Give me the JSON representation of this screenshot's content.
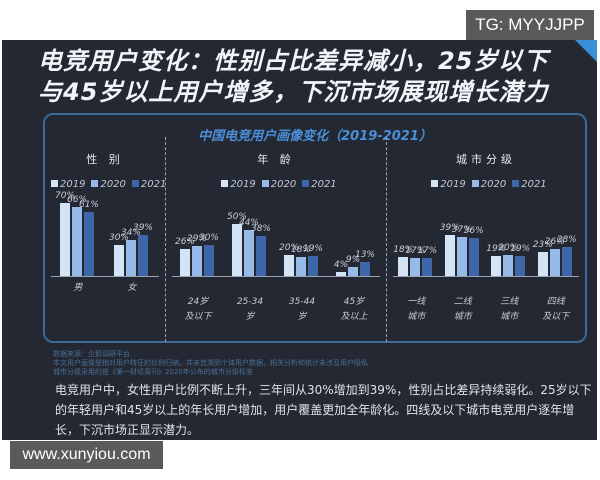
{
  "watermark_top": "TG: MYYJJPP",
  "watermark_bottom": "www.xunyiou.com",
  "headline": {
    "line1": "电竞用户变化：性别占比差异减小，25岁以下",
    "line2": "与45岁以上用户增多，下沉市场展现增长潜力"
  },
  "colors": {
    "y2019": "#d4e4f7",
    "y2020": "#96bbe8",
    "y2021": "#3d67a8",
    "panel_bg": "#232833",
    "accent": "#4b8fd8"
  },
  "chart_data": [
    {
      "type": "bar",
      "title": "中国电竞用户画像变化（2019-2021）",
      "subtitle": "性 别",
      "categories": [
        "男",
        "女"
      ],
      "series": [
        {
          "name": "2019",
          "values": [
            70,
            30
          ]
        },
        {
          "name": "2020",
          "values": [
            66,
            34
          ]
        },
        {
          "name": "2021",
          "values": [
            61,
            39
          ]
        }
      ],
      "value_labels": [
        [
          "70%",
          "66%",
          "61%"
        ],
        [
          "30%",
          "34%",
          "39%"
        ]
      ],
      "ylabel": "",
      "xlabel": "",
      "ylim": [
        0,
        80
      ],
      "grid": false,
      "legend_position": "top"
    },
    {
      "type": "bar",
      "subtitle": "年 龄",
      "categories": [
        "24岁及以下",
        "25-34岁",
        "35-44岁",
        "45岁及以上"
      ],
      "series": [
        {
          "name": "2019",
          "values": [
            26,
            50,
            20,
            4
          ]
        },
        {
          "name": "2020",
          "values": [
            29,
            44,
            18,
            9
          ]
        },
        {
          "name": "2021",
          "values": [
            30,
            38,
            19,
            13
          ]
        }
      ],
      "value_labels": [
        [
          "26%",
          "29%",
          "30%"
        ],
        [
          "50%",
          "44%",
          "38%"
        ],
        [
          "20%",
          "18%",
          "19%"
        ],
        [
          "4%",
          "9%",
          "13%"
        ]
      ],
      "ylim": [
        0,
        80
      ],
      "grid": false,
      "legend_position": "top"
    },
    {
      "type": "bar",
      "subtitle": "城市分级",
      "categories": [
        "一线城市",
        "二线城市",
        "三线城市",
        "四线及以下"
      ],
      "series": [
        {
          "name": "2019",
          "values": [
            18,
            39,
            19,
            23
          ]
        },
        {
          "name": "2020",
          "values": [
            17,
            37,
            20,
            26
          ]
        },
        {
          "name": "2021",
          "values": [
            17,
            36,
            19,
            28
          ]
        }
      ],
      "value_labels": [
        [
          "18%",
          "17%",
          "17%"
        ],
        [
          "39%",
          "37%",
          "36%"
        ],
        [
          "19%",
          "20%",
          "19%"
        ],
        [
          "23%",
          "26%",
          "28%"
        ]
      ],
      "ylim": [
        0,
        80
      ],
      "grid": false,
      "legend_position": "top"
    }
  ],
  "box": {
    "title": "中国电竞用户画像变化（2019-2021）",
    "legend": [
      "2019",
      "2020",
      "2021"
    ],
    "sections": [
      {
        "title": "性 别",
        "groups": [
          {
            "cat1": "男",
            "cat2": "",
            "values": [
              70,
              66,
              61
            ],
            "labels": [
              "70%",
              "66%",
              "61%"
            ]
          },
          {
            "cat1": "女",
            "cat2": "",
            "values": [
              30,
              34,
              39
            ],
            "labels": [
              "30%",
              "34%",
              "39%"
            ]
          }
        ]
      },
      {
        "title": "年 龄",
        "groups": [
          {
            "cat1": "24岁",
            "cat2": "及以下",
            "values": [
              26,
              29,
              30
            ],
            "labels": [
              "26%",
              "29%",
              "30%"
            ]
          },
          {
            "cat1": "25-34",
            "cat2": "岁",
            "values": [
              50,
              44,
              38
            ],
            "labels": [
              "50%",
              "44%",
              "38%"
            ]
          },
          {
            "cat1": "35-44",
            "cat2": "岁",
            "values": [
              20,
              18,
              19
            ],
            "labels": [
              "20%",
              "18%",
              "19%"
            ]
          },
          {
            "cat1": "45岁",
            "cat2": "及以上",
            "values": [
              4,
              9,
              13
            ],
            "labels": [
              "4%",
              "9%",
              "13%"
            ]
          }
        ]
      },
      {
        "title": "城市分级",
        "groups": [
          {
            "cat1": "一线",
            "cat2": "城市",
            "values": [
              18,
              17,
              17
            ],
            "labels": [
              "18%",
              "17%",
              "17%"
            ]
          },
          {
            "cat1": "二线",
            "cat2": "城市",
            "values": [
              39,
              37,
              36
            ],
            "labels": [
              "39%",
              "37%",
              "36%"
            ]
          },
          {
            "cat1": "三线",
            "cat2": "城市",
            "values": [
              19,
              20,
              19
            ],
            "labels": [
              "19%",
              "20%",
              "19%"
            ]
          },
          {
            "cat1": "四线",
            "cat2": "及以下",
            "values": [
              23,
              26,
              28
            ],
            "labels": [
              "23%",
              "26%",
              "28%"
            ]
          }
        ]
      }
    ]
  },
  "notes": [
    "数据来源：企鹅调研平台",
    "本文用户画像是指对用户特征的比例归纳，并未追溯到个体用户数据，相关分析和统计未涉及用户隐私",
    "城市分级采用的是《第一财经周刊》2020年公布的城市分级标准"
  ],
  "summary": "电竞用户中，女性用户比例不断上升，三年间从30%增加到39%，性别占比差异持续弱化。25岁以下的年轻用户和45岁以上的年长用户增加，用户覆盖更加全年龄化。四线及以下城市电竞用户逐年增长，下沉市场正显示潜力。"
}
